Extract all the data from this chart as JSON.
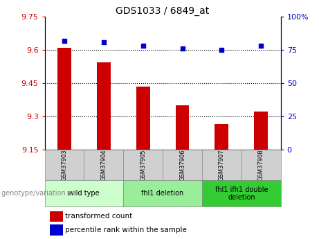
{
  "title": "GDS1033 / 6849_at",
  "samples": [
    "GSM37903",
    "GSM37904",
    "GSM37905",
    "GSM37906",
    "GSM37907",
    "GSM37908"
  ],
  "bar_values": [
    9.61,
    9.545,
    9.435,
    9.35,
    9.265,
    9.32
  ],
  "percentile_values": [
    82,
    81,
    78,
    76,
    75,
    78
  ],
  "y_min": 9.15,
  "y_max": 9.75,
  "y_ticks": [
    9.15,
    9.3,
    9.45,
    9.6,
    9.75
  ],
  "y2_ticks": [
    0,
    25,
    50,
    75,
    100
  ],
  "bar_color": "#cc0000",
  "dot_color": "#0000cc",
  "groups": [
    {
      "label": "wild type",
      "start": 0,
      "end": 2,
      "color": "#ccffcc"
    },
    {
      "label": "fhl1 deletion",
      "start": 2,
      "end": 4,
      "color": "#99ee99"
    },
    {
      "label": "fhl1 ifh1 double\ndeletion",
      "start": 4,
      "end": 6,
      "color": "#33cc33"
    }
  ],
  "legend_bar_label": "transformed count",
  "legend_dot_label": "percentile rank within the sample",
  "genotype_label": "genotype/variation",
  "axis_label_color_left": "#cc0000",
  "axis_label_color_right": "#0000cc",
  "sample_box_color": "#d0d0d0",
  "border_color": "#888888"
}
